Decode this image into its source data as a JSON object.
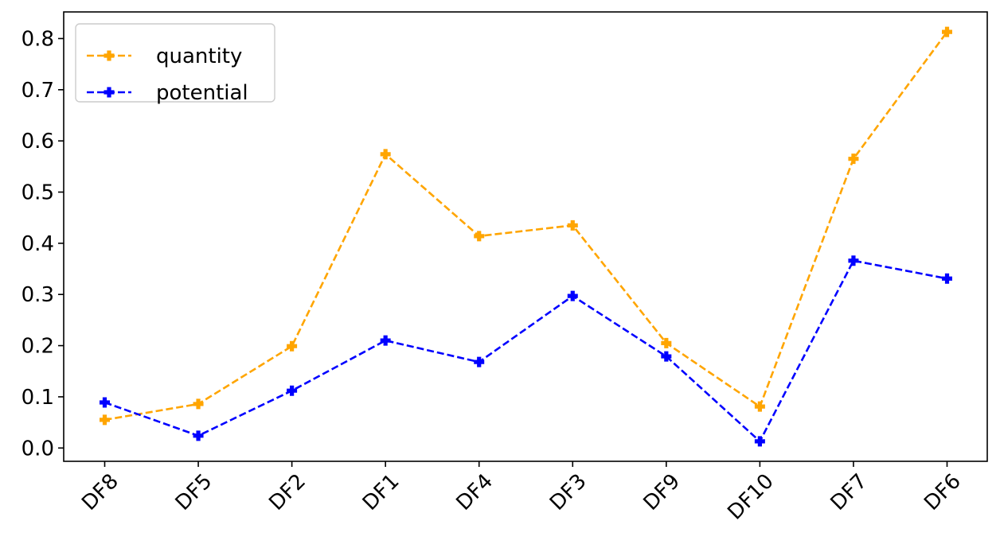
{
  "chart_data": {
    "type": "line",
    "categories": [
      "DF8",
      "DF5",
      "DF2",
      "DF1",
      "DF4",
      "DF3",
      "DF9",
      "DF10",
      "DF7",
      "DF6"
    ],
    "series": [
      {
        "name": "quantity",
        "color": "#ffa500",
        "linestyle": "dashed",
        "marker": "plus-filled",
        "values": [
          0.055,
          0.086,
          0.199,
          0.574,
          0.414,
          0.435,
          0.205,
          0.081,
          0.565,
          0.813
        ]
      },
      {
        "name": "potential",
        "color": "#0000ff",
        "linestyle": "dashed",
        "marker": "plus-filled",
        "values": [
          0.089,
          0.024,
          0.112,
          0.21,
          0.168,
          0.297,
          0.179,
          0.013,
          0.366,
          0.331
        ]
      }
    ],
    "yticks": [
      "0.0",
      "0.1",
      "0.2",
      "0.3",
      "0.4",
      "0.5",
      "0.6",
      "0.7",
      "0.8"
    ],
    "ylim": [
      -0.026,
      0.852
    ],
    "xlabel": "",
    "ylabel": "",
    "title": "",
    "grid": false,
    "legend_position": "top-left",
    "xtick_rotation": "45 degrees"
  }
}
